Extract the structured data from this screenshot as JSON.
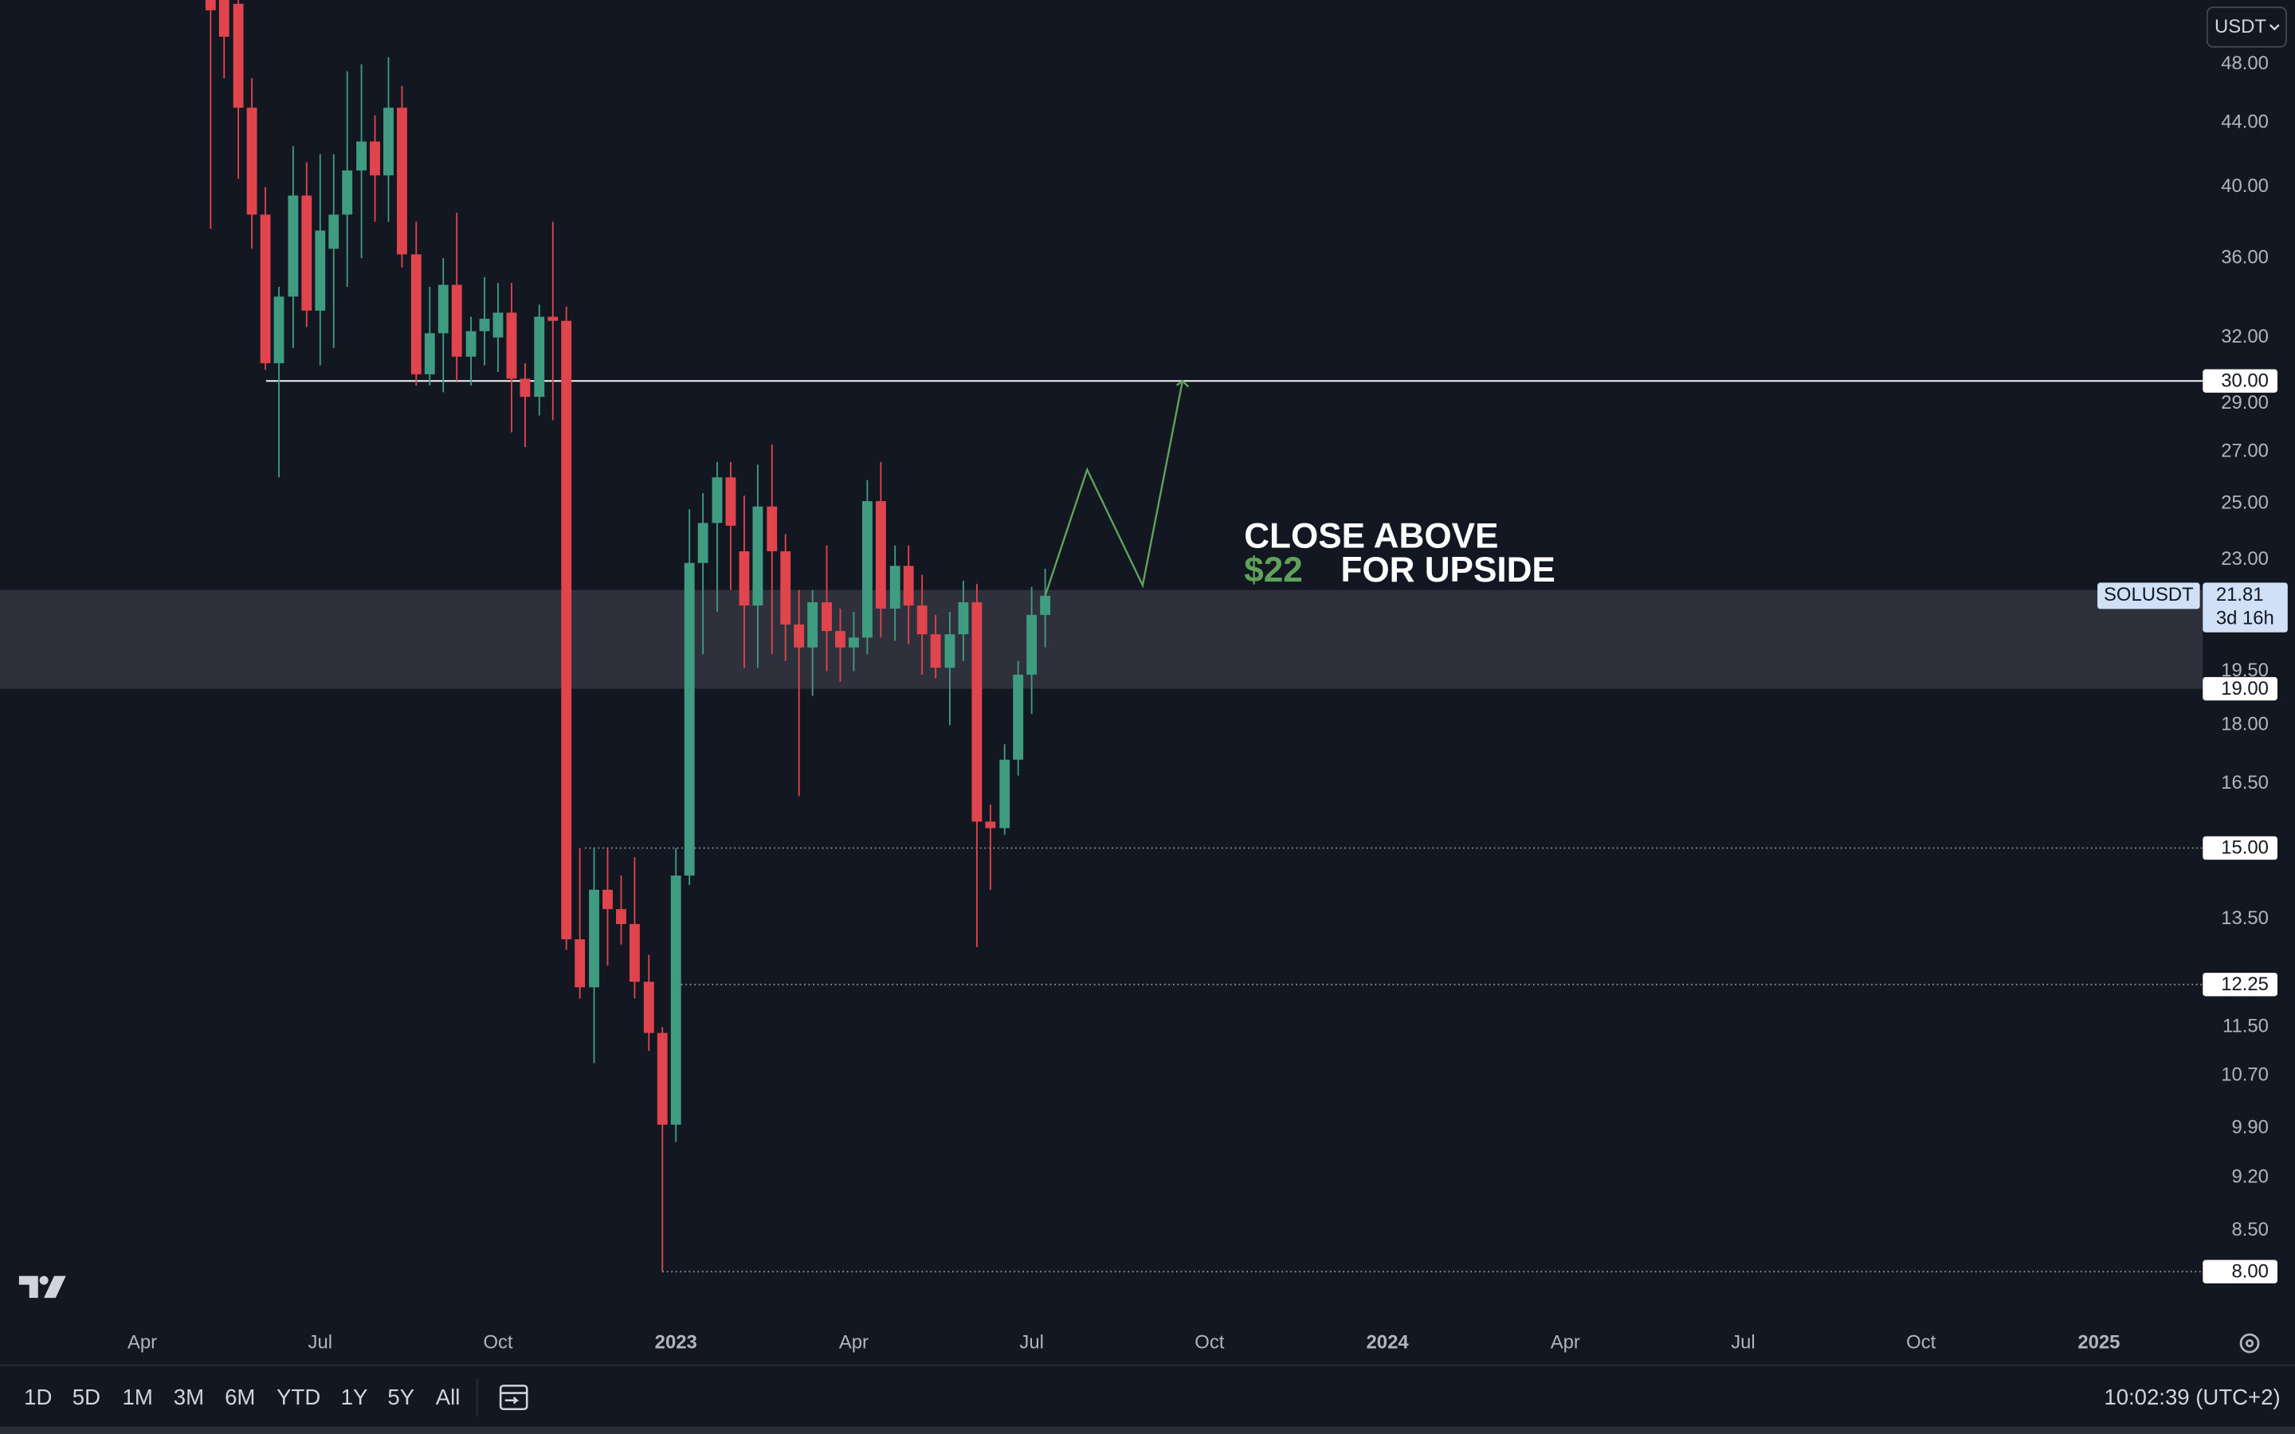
{
  "chart_data": {
    "type": "candlestick",
    "symbol": "SOLUSDT",
    "currency": "USDT",
    "up_color": "#3f9c80",
    "down_color": "#e0454d",
    "log_scale": true,
    "x": [
      2022.346,
      2022.365,
      2022.385,
      2022.404,
      2022.423,
      2022.442,
      2022.462,
      2022.481,
      2022.5,
      2022.519,
      2022.538,
      2022.558,
      2022.577,
      2022.596,
      2022.615,
      2022.635,
      2022.654,
      2022.673,
      2022.692,
      2022.712,
      2022.731,
      2022.75,
      2022.769,
      2022.788,
      2022.808,
      2022.827,
      2022.846,
      2022.865,
      2022.885,
      2022.904,
      2022.923,
      2022.942,
      2022.962,
      2022.981,
      2023.0,
      2023.019,
      2023.038,
      2023.058,
      2023.077,
      2023.096,
      2023.115,
      2023.135,
      2023.154,
      2023.173,
      2023.192,
      2023.212,
      2023.231,
      2023.25,
      2023.269,
      2023.288,
      2023.308,
      2023.327,
      2023.346,
      2023.365,
      2023.385,
      2023.404,
      2023.423,
      2023.442,
      2023.462,
      2023.481,
      2023.5,
      2023.519
    ],
    "open": [
      58,
      54,
      52.5,
      45,
      38.4,
      30.8,
      34,
      39.5,
      33.3,
      36.5,
      38.4,
      41,
      42.8,
      40.7,
      45,
      36.2,
      30.3,
      32.2,
      34.6,
      31.1,
      32.3,
      32.0,
      33.2,
      30.1,
      29.3,
      33.0,
      32.8,
      13.1,
      12.2,
      14.1,
      13.7,
      13.4,
      12.3,
      11.4,
      9.95,
      14.4,
      22.9,
      24.3,
      26.0,
      23.3,
      21.5,
      24.9,
      23.3,
      20.9,
      20.2,
      21.6,
      20.7,
      20.2,
      20.5,
      25.1,
      21.4,
      22.8,
      21.5,
      20.6,
      19.6,
      20.6,
      21.6,
      15.6,
      15.45,
      17.1,
      19.4,
      21.2
    ],
    "high": [
      60,
      57,
      53,
      47,
      40,
      34.5,
      42.5,
      41.5,
      42,
      42,
      47.5,
      48,
      44.5,
      48.5,
      46.5,
      38,
      34.5,
      36,
      38.5,
      33,
      35,
      34.7,
      34.7,
      30.8,
      33.6,
      38,
      33.5,
      15,
      15,
      15,
      14.4,
      14.8,
      12.8,
      11.5,
      15.0,
      24.8,
      25.4,
      26.6,
      26.6,
      25.3,
      26.5,
      27.3,
      23.9,
      22,
      22,
      23.5,
      21.4,
      21.3,
      25.9,
      26.6,
      23.5,
      23.5,
      22.5,
      21.2,
      21.3,
      22.3,
      22.2,
      16.0,
      17.5,
      19.8,
      22.1,
      22.7
    ],
    "low": [
      37.6,
      47,
      40.5,
      36.5,
      30.5,
      26,
      31.5,
      32.5,
      30.7,
      31.5,
      34.5,
      36,
      38,
      38,
      35.5,
      29.8,
      29.8,
      29.5,
      30,
      29.8,
      30.7,
      30.4,
      27.8,
      27.2,
      28.5,
      28.3,
      12.9,
      12.0,
      10.9,
      12.6,
      13.0,
      12.0,
      11.1,
      8.0,
      9.7,
      14.2,
      20.0,
      21.3,
      22.0,
      19.6,
      19.6,
      20.0,
      19.8,
      16.2,
      18.8,
      19.5,
      19.2,
      19.5,
      20.0,
      20.5,
      20.4,
      20.3,
      19.4,
      19.3,
      18.0,
      19.8,
      12.95,
      14.1,
      15.3,
      16.7,
      18.3,
      20.2
    ],
    "close": [
      52,
      50,
      45,
      38.4,
      30.8,
      34,
      39.5,
      33.3,
      37.5,
      38.4,
      41,
      42.8,
      40.7,
      45,
      36.2,
      30.3,
      32.2,
      34.6,
      31.1,
      32.3,
      32.9,
      33.2,
      30.1,
      29.3,
      33.0,
      32.8,
      13.1,
      12.2,
      14.1,
      13.7,
      13.4,
      12.3,
      11.4,
      9.95,
      14.4,
      22.9,
      24.3,
      26.0,
      24.2,
      21.5,
      24.9,
      23.3,
      20.9,
      20.2,
      21.6,
      20.7,
      20.2,
      20.5,
      25.1,
      21.4,
      22.8,
      21.5,
      20.6,
      19.6,
      20.6,
      21.6,
      15.6,
      15.45,
      17.1,
      19.4,
      21.2,
      21.81
    ],
    "last_price": {
      "value": 21.81,
      "label": "21.81"
    },
    "countdown": "3d 16h",
    "xlim": [
      2022.05,
      2025.146
    ],
    "xticks": [
      {
        "value": 2022.25,
        "label": "Apr"
      },
      {
        "value": 2022.5,
        "label": "Jul"
      },
      {
        "value": 2022.75,
        "label": "Oct"
      },
      2023,
      {
        "value": 2023.25,
        "label": "Apr"
      },
      {
        "value": 2023.5,
        "label": "Jul"
      },
      {
        "value": 2023.75,
        "label": "Oct"
      },
      2024,
      {
        "value": 2024.25,
        "label": "Apr"
      },
      {
        "value": 2024.5,
        "label": "Jul"
      },
      {
        "value": 2024.75,
        "label": "Oct"
      },
      2025
    ],
    "ylim": [
      7.48,
      52.8
    ],
    "yticks": [
      {
        "value": 48,
        "label": "48.00"
      },
      {
        "value": 44,
        "label": "44.00"
      },
      {
        "value": 40,
        "label": "40.00"
      },
      {
        "value": 36,
        "label": "36.00"
      },
      {
        "value": 32,
        "label": "32.00"
      },
      {
        "value": 29,
        "label": "29.00"
      },
      {
        "value": 27,
        "label": "27.00"
      },
      {
        "value": 25,
        "label": "25.00"
      },
      {
        "value": 23,
        "label": "23.00"
      },
      {
        "value": 19.5,
        "label": "19.50"
      },
      {
        "value": 18,
        "label": "18.00"
      },
      {
        "value": 16.5,
        "label": "16.50"
      },
      {
        "value": 13.5,
        "label": "13.50"
      },
      {
        "value": 11.5,
        "label": "11.50"
      },
      {
        "value": 10.7,
        "label": "10.70"
      },
      {
        "value": 9.9,
        "label": "9.90"
      },
      {
        "value": 9.2,
        "label": "9.20"
      },
      {
        "value": 8.5,
        "label": "8.50"
      }
    ],
    "zone": {
      "from": 19,
      "to": 22,
      "color": "#2e313b"
    },
    "levels": [
      {
        "value": 30,
        "label": "30.00",
        "style": "solid",
        "start": 2022.424
      },
      {
        "value": 19,
        "label": "19.00",
        "style": "none"
      },
      {
        "value": 15,
        "label": "15.00",
        "style": "dotted",
        "start": 2022.872
      },
      {
        "value": 12.25,
        "label": "12.25",
        "style": "dotted",
        "start": 2022.995
      },
      {
        "value": 8,
        "label": "8.00",
        "style": "dotted",
        "start": 2022.981
      }
    ],
    "projection": {
      "color": "#5fa35a",
      "x": [
        2023.519,
        2023.578,
        2023.656,
        2023.712
      ],
      "y": [
        21.81,
        26.3,
        22.15,
        30
      ]
    },
    "annotation": {
      "line1": "CLOSE ABOVE",
      "highlight": "$22",
      "line2": "FOR UPSIDE"
    }
  },
  "toolbar": {
    "ranges": [
      "1D",
      "5D",
      "1M",
      "3M",
      "6M",
      "YTD",
      "1Y",
      "5Y",
      "All"
    ],
    "clock": "10:02:39 (UTC+2)"
  }
}
